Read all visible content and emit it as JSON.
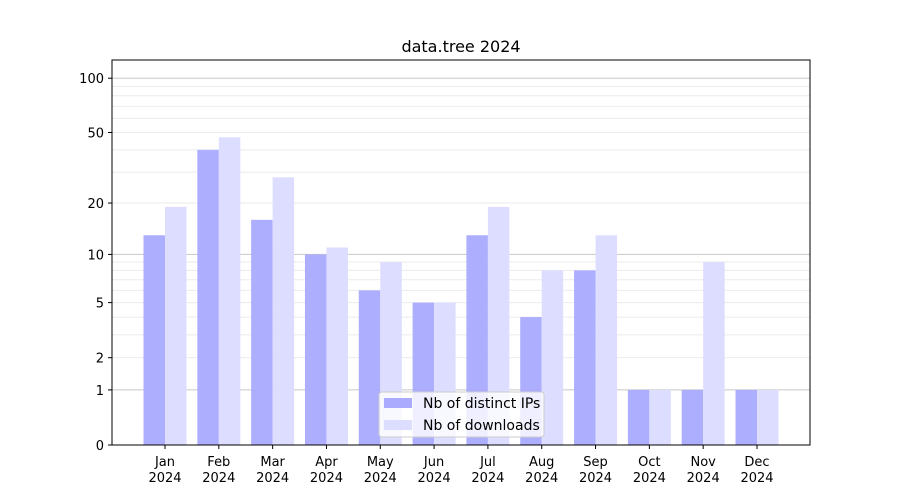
{
  "chart_data": {
    "type": "bar",
    "title": "data.tree 2024",
    "xlabel": "",
    "ylabel": "",
    "yscale": "log(1+y)",
    "ylim": [
      0,
      126
    ],
    "yticks": [
      0,
      1,
      2,
      5,
      10,
      20,
      50,
      100
    ],
    "grid": true,
    "legend_position": "lower-center",
    "categories": [
      "Jan\n2024",
      "Feb\n2024",
      "Mar\n2024",
      "Apr\n2024",
      "May\n2024",
      "Jun\n2024",
      "Jul\n2024",
      "Aug\n2024",
      "Sep\n2024",
      "Oct\n2024",
      "Nov\n2024",
      "Dec\n2024"
    ],
    "series": [
      {
        "name": "Nb of distinct IPs",
        "color": "#aaaaff",
        "values": [
          13,
          40,
          16,
          10,
          6,
          5,
          13,
          4,
          8,
          1,
          1,
          1
        ]
      },
      {
        "name": "Nb of downloads",
        "color": "#ddddff",
        "values": [
          19,
          47,
          28,
          11,
          9,
          5,
          19,
          8,
          13,
          1,
          9,
          1
        ]
      }
    ]
  }
}
